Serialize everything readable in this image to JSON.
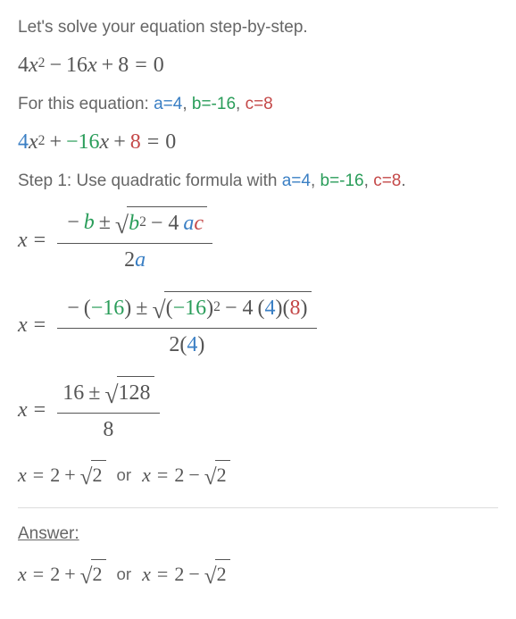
{
  "colors": {
    "a": "#3a7fc4",
    "b": "#2a9d5a",
    "c": "#c44848",
    "text": "#555555",
    "body_text": "#666666",
    "divider": "#dddddd"
  },
  "intro": "Let's solve your equation step-by-step.",
  "equation": {
    "a_coef": "4",
    "var": "x",
    "exp": "2",
    "b_op": "−",
    "b_coef": "16",
    "c_op": "+",
    "c_coef": "8",
    "eq": "=",
    "rhs": "0"
  },
  "coef_line": {
    "prefix": "For this equation: ",
    "a": "a=4",
    "sep1": ", ",
    "b": "b=-16",
    "sep2": ", ",
    "c": "c=8"
  },
  "colored_eq": {
    "a_coef": "4",
    "var": "x",
    "exp": "2",
    "plus": "+",
    "b_coef": "−16",
    "plus2": "+",
    "c_coef": "8",
    "eq": "=",
    "rhs": "0"
  },
  "step1": {
    "prefix": "Step 1: Use quadratic formula with ",
    "a": "a=4",
    "sep1": ", ",
    "b": "b=-16",
    "sep2": ", ",
    "c": "c=8",
    "period": "."
  },
  "formula": {
    "x": "x",
    "minus": "−",
    "b": "b",
    "pm": "±",
    "sqrt": "√",
    "b2": "b",
    "exp2": "2",
    "minus4": "− 4",
    "a": "a",
    "c": "c",
    "two": "2",
    "a2": "a"
  },
  "substituted": {
    "x": "x",
    "minus": "−",
    "open": "(",
    "neg16": "−16",
    "close": ")",
    "pm": "±",
    "sqrt": "√",
    "open2": "(",
    "neg16_2": "−16",
    "close2": ")",
    "exp2": "2",
    "minus4": "− 4",
    "open3": "(",
    "four": "4",
    "close3": ")(",
    "eight": "8",
    "close4": ")",
    "two_open": "2(",
    "four2": "4",
    "close5": ")"
  },
  "simplified": {
    "x": "x",
    "sixteen": "16",
    "pm": "±",
    "sqrt": "√",
    "onetwentyeight": "128",
    "eight": "8"
  },
  "result": {
    "x1": "x",
    "eq": "=",
    "two": "2",
    "plus": "+",
    "sqrt": "√",
    "rad2": "2",
    "or": "or",
    "x2": "x",
    "minus": "−"
  },
  "answer_label": "Answer:",
  "answer": {
    "x1": "x",
    "eq": "=",
    "two": "2",
    "plus": "+",
    "sqrt": "√",
    "rad2": "2",
    "or": "or",
    "x2": "x",
    "minus": "−"
  }
}
